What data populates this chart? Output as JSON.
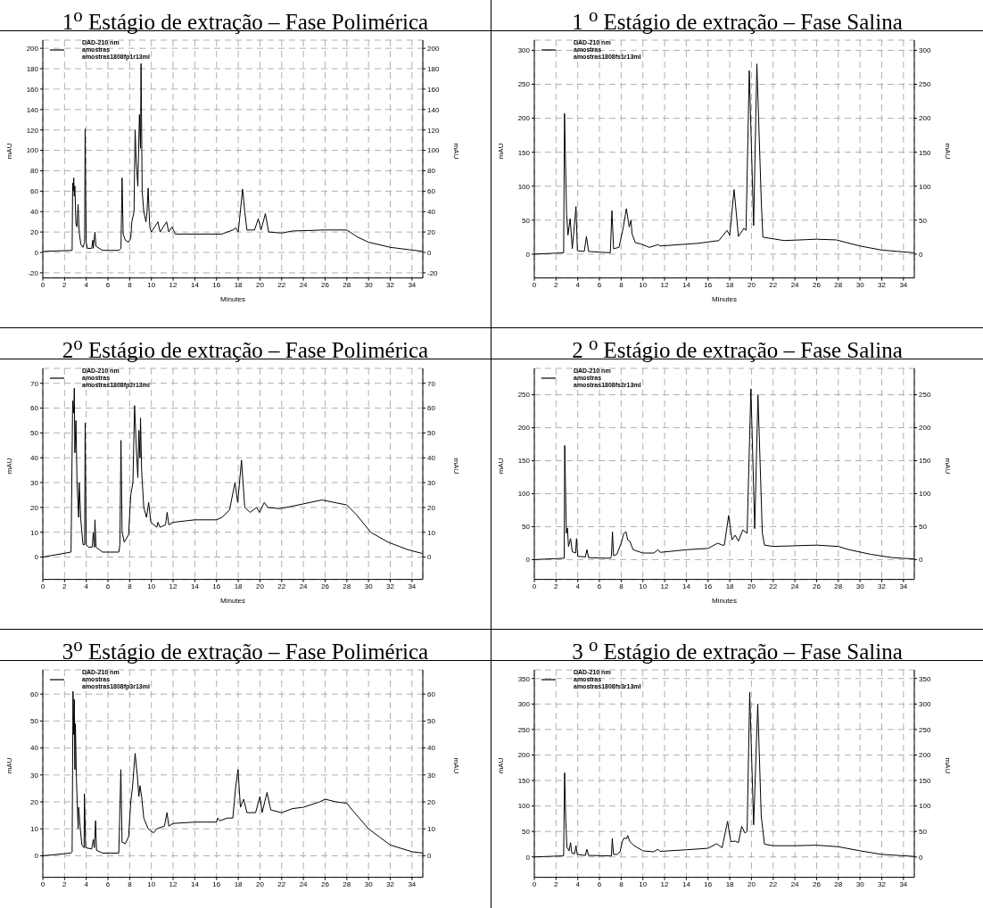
{
  "chart_data": [
    {
      "type": "line",
      "title": "1$^{o}$ Estágio de extração – Fase Polimérica",
      "xlabel": "Minutes",
      "ylabel": "mAU",
      "y2label": "mAU",
      "xlim": [
        0,
        35
      ],
      "xticks": [
        0,
        2,
        4,
        6,
        8,
        10,
        12,
        14,
        16,
        18,
        20,
        22,
        24,
        26,
        28,
        30,
        32,
        34
      ],
      "ylim": [
        -25,
        208
      ],
      "yticks": [
        -20,
        0,
        20,
        40,
        60,
        80,
        100,
        120,
        140,
        160,
        180,
        200
      ],
      "y2lim": [
        -25,
        208
      ],
      "y2ticks": [
        -20,
        0,
        20,
        40,
        60,
        80,
        100,
        120,
        140,
        160,
        180,
        200
      ],
      "grid": true,
      "legend": "top left",
      "annotations": [
        "amostras",
        "amostras1808fp1r13ml"
      ],
      "series": [
        {
          "name": "DAD-210 nm",
          "color": "#000000",
          "x": [
            0,
            2.7,
            2.75,
            2.8,
            2.85,
            2.9,
            2.95,
            3.05,
            3.15,
            3.25,
            3.35,
            3.5,
            3.7,
            3.85,
            3.9,
            3.95,
            4.0,
            4.1,
            4.5,
            4.6,
            4.65,
            4.8,
            4.9,
            5.5,
            6,
            7,
            7.2,
            7.3,
            7.4,
            7.6,
            7.9,
            8.1,
            8.2,
            8.4,
            8.5,
            8.6,
            8.75,
            8.9,
            9.0,
            9.05,
            9.15,
            9.3,
            9.5,
            9.6,
            9.7,
            9.85,
            10.0,
            10.6,
            10.8,
            11.4,
            11.6,
            11.9,
            12.2,
            14,
            16.5,
            17.5,
            17.8,
            18.0,
            18.4,
            18.6,
            18.8,
            19.5,
            19.85,
            20.1,
            20.5,
            20.8,
            22,
            23,
            26,
            28,
            29,
            30,
            32,
            35
          ],
          "values": [
            1,
            2,
            68,
            60,
            73,
            55,
            65,
            28,
            25,
            47,
            20,
            8,
            5,
            10,
            121,
            60,
            10,
            4,
            4,
            12,
            4,
            20,
            6,
            2,
            2,
            2,
            4,
            73,
            18,
            12,
            10,
            14,
            30,
            40,
            120,
            90,
            65,
            135,
            102,
            185,
            60,
            40,
            30,
            40,
            63,
            25,
            20,
            30,
            20,
            30,
            20,
            25,
            18,
            18,
            18,
            22,
            24,
            20,
            62,
            40,
            22,
            22,
            33,
            22,
            38,
            20,
            19,
            21,
            22,
            22,
            15,
            10,
            5,
            1
          ]
        }
      ]
    },
    {
      "type": "line",
      "title": "1 $^{o}$ Estágio de extração – Fase Salina",
      "xlabel": "Minutes",
      "ylabel": "mAU",
      "y2label": "mAU",
      "xlim": [
        0,
        35
      ],
      "xticks": [
        0,
        2,
        4,
        6,
        8,
        10,
        12,
        14,
        16,
        18,
        20,
        22,
        24,
        26,
        28,
        30,
        32,
        34
      ],
      "ylim": [
        -35,
        315
      ],
      "yticks": [
        0,
        50,
        100,
        150,
        200,
        250,
        300
      ],
      "y2lim": [
        -35,
        315
      ],
      "y2ticks": [
        0,
        50,
        100,
        150,
        200,
        250,
        300
      ],
      "grid": true,
      "legend": "top left",
      "annotations": [
        "amostras",
        "amostras1808fs1r13ml"
      ],
      "series": [
        {
          "name": "DAD-210 nm",
          "color": "#000000",
          "x": [
            0,
            2.7,
            2.78,
            2.97,
            3.1,
            3.3,
            3.5,
            3.84,
            3.97,
            4.6,
            4.8,
            5.0,
            7.0,
            7.15,
            7.3,
            7.8,
            8.2,
            8.48,
            8.74,
            8.9,
            9.0,
            9.3,
            9.8,
            10.6,
            11.4,
            11.6,
            15.1,
            17,
            17.75,
            18.0,
            18.4,
            18.8,
            19.3,
            19.5,
            19.8,
            20.2,
            20.5,
            20.9,
            21.05,
            23,
            26,
            27.8,
            30,
            32,
            35
          ],
          "values": [
            0,
            2,
            207,
            60,
            28,
            52,
            8,
            70,
            5,
            4,
            26,
            4,
            2,
            64,
            8,
            10,
            40,
            67,
            40,
            50,
            30,
            17,
            15,
            10,
            14,
            12,
            16,
            20,
            35,
            28,
            95,
            26,
            38,
            35,
            270,
            42,
            280,
            80,
            25,
            20,
            22,
            21,
            12,
            6,
            2
          ]
        }
      ]
    },
    {
      "type": "line",
      "title": "2$^{o}$ Estágio de extração – Fase Polimérica",
      "xlabel": "Minutes",
      "ylabel": "mAU",
      "y2label": "mAU",
      "xlim": [
        0,
        35
      ],
      "xticks": [
        0,
        2,
        4,
        6,
        8,
        10,
        12,
        14,
        16,
        18,
        20,
        22,
        24,
        26,
        28,
        30,
        32,
        34
      ],
      "ylim": [
        -9,
        76
      ],
      "yticks": [
        0,
        10,
        20,
        30,
        40,
        50,
        60,
        70
      ],
      "y2lim": [
        -9,
        76
      ],
      "y2ticks": [
        0,
        10,
        20,
        30,
        40,
        50,
        60,
        70
      ],
      "grid": true,
      "legend": "top left",
      "annotations": [
        "amostras",
        "amostras1808fp2r13ml"
      ],
      "series": [
        {
          "name": "DAD-210 nm",
          "color": "#000000",
          "x": [
            0,
            2.6,
            2.75,
            2.85,
            2.9,
            2.95,
            3.05,
            3.15,
            3.3,
            3.35,
            3.5,
            3.7,
            3.85,
            3.9,
            4.0,
            4.2,
            4.55,
            4.65,
            4.75,
            4.8,
            4.9,
            5.5,
            7.0,
            7.1,
            7.2,
            7.3,
            7.5,
            7.9,
            8.1,
            8.3,
            8.45,
            8.6,
            8.75,
            8.85,
            8.95,
            9.0,
            9.1,
            9.3,
            9.55,
            9.75,
            9.95,
            10.5,
            10.6,
            10.8,
            11.3,
            11.45,
            11.6,
            12,
            14,
            16,
            16.5,
            17.2,
            17.7,
            17.95,
            18.3,
            18.6,
            19.1,
            19.7,
            19.95,
            20.4,
            20.7,
            21.8,
            23,
            25.7,
            28,
            28.9,
            30.2,
            31.8,
            33.6,
            34.9
          ],
          "values": [
            0,
            2,
            63,
            58,
            68,
            42,
            55,
            30,
            16,
            30,
            15,
            5,
            5,
            54,
            5,
            4,
            4,
            10,
            4,
            15,
            4,
            2,
            2,
            5,
            47,
            10,
            6,
            9,
            25,
            30,
            61,
            45,
            32,
            51,
            40,
            56,
            35,
            20,
            16,
            22,
            14,
            12,
            14,
            12,
            13,
            18,
            13,
            14,
            15,
            15,
            16,
            19,
            30,
            22,
            39,
            20,
            18,
            20,
            18,
            22,
            20,
            19.5,
            20.5,
            23,
            21,
            17,
            10,
            6,
            3,
            1.5
          ]
        }
      ]
    },
    {
      "type": "line",
      "title": "2 $^{o}$ Estágio de extração – Fase Salina",
      "xlabel": "Minutes",
      "ylabel": "mAU",
      "y2label": "mAU",
      "xlim": [
        0,
        35
      ],
      "xticks": [
        0,
        2,
        4,
        6,
        8,
        10,
        12,
        14,
        16,
        18,
        20,
        22,
        24,
        26,
        28,
        30,
        32,
        34
      ],
      "ylim": [
        -30,
        290
      ],
      "yticks": [
        0,
        50,
        100,
        150,
        200,
        250
      ],
      "y2lim": [
        -30,
        290
      ],
      "y2ticks": [
        0,
        50,
        100,
        150,
        200,
        250
      ],
      "grid": true,
      "legend": "top left",
      "annotations": [
        "amostras",
        "amostras1808fs2r13ml"
      ],
      "series": [
        {
          "name": "DAD-210 nm",
          "color": "#000000",
          "x": [
            0,
            2.6,
            2.75,
            2.8,
            2.95,
            3.05,
            3.15,
            3.34,
            3.5,
            3.8,
            3.89,
            4.0,
            4.7,
            4.85,
            5.0,
            7.0,
            7.1,
            7.2,
            7.3,
            7.6,
            8.0,
            8.25,
            8.45,
            8.6,
            8.8,
            9.1,
            10,
            11,
            11.4,
            11.6,
            14,
            16,
            16.9,
            17.3,
            17.5,
            17.9,
            18.2,
            18.5,
            18.8,
            19.2,
            19.6,
            19.95,
            20.3,
            20.6,
            21.0,
            21.2,
            22,
            26,
            28,
            29,
            31,
            33,
            35
          ],
          "values": [
            0,
            2,
            2,
            173,
            40,
            48,
            20,
            32,
            12,
            10,
            32,
            5,
            4,
            15,
            3,
            2,
            5,
            42,
            6,
            8,
            25,
            40,
            42,
            30,
            28,
            15,
            10,
            10,
            15,
            11,
            15,
            17,
            25,
            22,
            22,
            67,
            30,
            37,
            28,
            45,
            40,
            259,
            47,
            250,
            40,
            22,
            20,
            22,
            20,
            15,
            8,
            3,
            1
          ]
        }
      ]
    },
    {
      "type": "line",
      "title": "3$^{o}$ Estágio de extração – Fase Polimérica",
      "ylabel": "mAU",
      "y2label": "mAU",
      "xlim": [
        0,
        35
      ],
      "xticks": [
        0,
        2,
        4,
        6,
        8,
        10,
        12,
        14,
        16,
        18,
        20,
        22,
        24,
        26,
        28,
        30,
        32,
        34
      ],
      "ylim": [
        -8,
        69
      ],
      "yticks": [
        0,
        10,
        20,
        30,
        40,
        50,
        60
      ],
      "y2lim": [
        -8,
        69
      ],
      "y2ticks": [
        0,
        10,
        20,
        30,
        40,
        50,
        60
      ],
      "grid": true,
      "legend": "top left",
      "annotations": [
        "amostras",
        "amostras1808fp3r13ml"
      ],
      "series": [
        {
          "name": "DAD-210 nm",
          "color": "#000000",
          "x": [
            0,
            2.6,
            2.7,
            2.78,
            2.85,
            2.9,
            2.95,
            3.0,
            3.1,
            3.25,
            3.3,
            3.45,
            3.6,
            3.8,
            3.83,
            3.95,
            4.5,
            4.65,
            4.75,
            4.86,
            4.95,
            5.5,
            7.0,
            7.19,
            7.3,
            7.6,
            7.9,
            8.1,
            8.25,
            8.5,
            8.7,
            8.85,
            8.95,
            9.1,
            9.3,
            9.7,
            10.2,
            10.5,
            11.2,
            11.44,
            11.6,
            12,
            14,
            16,
            16.1,
            16.3,
            17,
            17.5,
            17.75,
            17.98,
            18.2,
            18.5,
            18.8,
            19.6,
            20.0,
            20.2,
            20.65,
            21,
            22,
            23,
            24,
            25.5,
            26,
            27,
            28,
            28.5,
            30,
            31,
            32,
            34,
            35
          ],
          "values": [
            0,
            1,
            1.5,
            61,
            45,
            58,
            32,
            49,
            28,
            10,
            18,
            10,
            4,
            3,
            23,
            3,
            2.5,
            6,
            3,
            13,
            2,
            1,
            1,
            32,
            5,
            4.5,
            7,
            20,
            25,
            38,
            30,
            22,
            26,
            22,
            14,
            10,
            8.5,
            10,
            11,
            16,
            11,
            12,
            12.5,
            12.5,
            14,
            13,
            14,
            14,
            25,
            32,
            18,
            21,
            16,
            16,
            22,
            16,
            23.5,
            17,
            16,
            17.5,
            18,
            20,
            21,
            20,
            19.5,
            17,
            10,
            7,
            4,
            1.5,
            1
          ]
        }
      ]
    },
    {
      "type": "line",
      "title": "3 $^{o}$ Estágio de extração – Fase Salina",
      "ylabel": "mAU",
      "y2label": "mAU",
      "xlim": [
        0,
        35
      ],
      "xticks": [
        0,
        2,
        4,
        6,
        8,
        10,
        12,
        14,
        16,
        18,
        20,
        22,
        24,
        26,
        28,
        30,
        32,
        34
      ],
      "ylim": [
        -40,
        367
      ],
      "yticks": [
        0,
        50,
        100,
        150,
        200,
        250,
        300,
        350
      ],
      "y2lim": [
        -40,
        367
      ],
      "y2ticks": [
        0,
        50,
        100,
        150,
        200,
        250,
        300,
        350
      ],
      "grid": true,
      "legend": "top left",
      "annotations": [
        "amostras",
        "amostras1808fs3r13ml"
      ],
      "series": [
        {
          "name": "DAD-210 nm",
          "color": "#000000",
          "x": [
            0,
            2.6,
            2.7,
            2.79,
            2.9,
            3.0,
            3.2,
            3.34,
            3.45,
            3.7,
            3.84,
            3.95,
            4.7,
            4.84,
            5.0,
            7.0,
            7.1,
            7.18,
            7.3,
            7.6,
            7.9,
            8.1,
            8.25,
            8.5,
            8.6,
            8.8,
            9.2,
            10,
            11,
            11.35,
            11.6,
            14,
            16,
            16.8,
            17.3,
            17.8,
            18.1,
            18.5,
            18.8,
            19.1,
            19.4,
            19.6,
            19.84,
            20.2,
            20.58,
            20.9,
            21.2,
            22,
            24,
            26,
            28,
            30,
            32,
            35
          ],
          "values": [
            0,
            2,
            2,
            165,
            70,
            20,
            12,
            28,
            8,
            6,
            22,
            5,
            3,
            15,
            3,
            2,
            2,
            36,
            5,
            5,
            10,
            30,
            37,
            36,
            42,
            30,
            22,
            12,
            10,
            15,
            11,
            14,
            17,
            26,
            18,
            70,
            30,
            31,
            28,
            60,
            47,
            50,
            323,
            63,
            300,
            80,
            25,
            22,
            22,
            23,
            20,
            12,
            5,
            1
          ]
        }
      ]
    }
  ]
}
